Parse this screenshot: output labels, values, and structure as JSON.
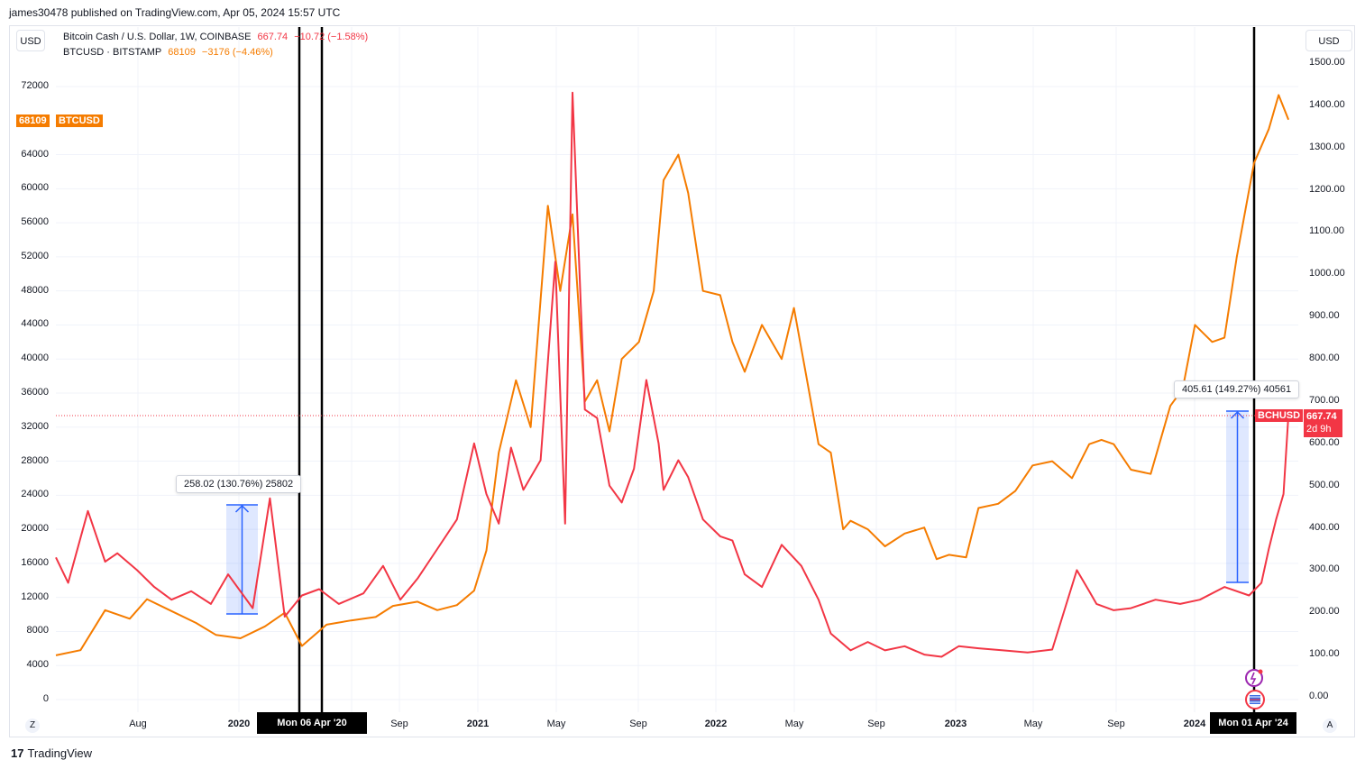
{
  "header": {
    "published": "james30478 published on TradingView.com, Apr 05, 2024 15:57 UTC"
  },
  "currency_left": "USD",
  "currency_right": "USD",
  "legend": {
    "bch": {
      "name": "Bitcoin Cash / U.S. Dollar, 1W, COINBASE",
      "price": "667.74",
      "change": "−10.72 (−1.58%)"
    },
    "btc": {
      "name": "BTCUSD · BITSTAMP",
      "price": "68109",
      "change": "−3176 (−4.46%)"
    }
  },
  "price_tags": {
    "btc_value": "68109",
    "btc_symbol": "BTCUSD",
    "bch_symbol": "BCHUSD",
    "bch_value": "667.74",
    "bch_countdown": "2d 9h"
  },
  "measurements": [
    {
      "text": "258.02 (130.76%) 25802"
    },
    {
      "text": "405.61 (149.27%) 40561"
    }
  ],
  "date_markers": [
    "Mon 06 Apr '20",
    "Mon 01 Apr '24"
  ],
  "colors": {
    "btc": "#f57c00",
    "bch": "#f23645",
    "measure": "#2962ff",
    "grid": "#f0f3fa"
  },
  "footer": {
    "brand": "TradingView",
    "corner_left": "Z",
    "corner_right": "A"
  },
  "chart_data": {
    "type": "line",
    "title": "",
    "x": [
      "Aug",
      "2020",
      "Sep",
      "2021",
      "May",
      "Sep",
      "2022",
      "May",
      "Sep",
      "2023",
      "May",
      "Sep",
      "2024"
    ],
    "x_tick_labels": [
      "Aug",
      "2020",
      "'20",
      "Sep",
      "2021",
      "May",
      "Sep",
      "2022",
      "May",
      "Sep",
      "2023",
      "May",
      "Sep",
      "2024"
    ],
    "y_left_ticks": [
      "0",
      "4000",
      "8000",
      "12000",
      "16000",
      "20000",
      "24000",
      "28000",
      "32000",
      "36000",
      "40000",
      "44000",
      "48000",
      "52000",
      "56000",
      "60000",
      "64000",
      "72000"
    ],
    "y_right_ticks": [
      "0.00",
      "100.00",
      "200.00",
      "300.00",
      "400.00",
      "500.00",
      "600.00",
      "700.00",
      "800.00",
      "900.00",
      "1000.00",
      "1100.00",
      "1200.00",
      "1300.00",
      "1400.00",
      "1500.00"
    ],
    "ylim_left": [
      0,
      72000
    ],
    "ylim_right": [
      0,
      1450
    ],
    "series": [
      {
        "name": "BTCUSD · BITSTAMP",
        "axis": "left",
        "x": [
          2019.25,
          2019.35,
          2019.45,
          2019.55,
          2019.62,
          2019.72,
          2019.82,
          2019.9,
          2020.0,
          2020.1,
          2020.18,
          2020.25,
          2020.35,
          2020.45,
          2020.55,
          2020.62,
          2020.72,
          2020.8,
          2020.88,
          2020.95,
          2021.0,
          2021.05,
          2021.12,
          2021.18,
          2021.25,
          2021.3,
          2021.35,
          2021.4,
          2021.45,
          2021.5,
          2021.55,
          2021.62,
          2021.68,
          2021.72,
          2021.78,
          2021.82,
          2021.88,
          2021.95,
          2022.0,
          2022.05,
          2022.12,
          2022.2,
          2022.25,
          2022.3,
          2022.35,
          2022.4,
          2022.45,
          2022.48,
          2022.55,
          2022.62,
          2022.7,
          2022.78,
          2022.83,
          2022.88,
          2022.95,
          2023.0,
          2023.08,
          2023.15,
          2023.22,
          2023.3,
          2023.38,
          2023.45,
          2023.5,
          2023.55,
          2023.62,
          2023.7,
          2023.78,
          2023.83,
          2023.88,
          2023.95,
          2024.0,
          2024.05,
          2024.12,
          2024.18,
          2024.22,
          2024.26
        ],
        "y": [
          5200,
          5800,
          10500,
          9500,
          11800,
          10400,
          9000,
          7600,
          7200,
          8600,
          10200,
          6300,
          8800,
          9300,
          9700,
          11000,
          11500,
          10500,
          11100,
          12800,
          17500,
          29000,
          37500,
          32000,
          58000,
          48000,
          57000,
          35000,
          37500,
          31500,
          40000,
          42000,
          48000,
          61000,
          64000,
          59500,
          48000,
          47500,
          42000,
          38500,
          44000,
          40000,
          46000,
          38000,
          30000,
          29000,
          20000,
          21000,
          20000,
          18000,
          19500,
          20200,
          16500,
          17000,
          16700,
          22500,
          23000,
          24500,
          27500,
          28000,
          26000,
          30000,
          30500,
          30000,
          27000,
          26500,
          34500,
          36500,
          44000,
          42000,
          42500,
          52000,
          63000,
          67000,
          71000,
          68109
        ]
      },
      {
        "name": "Bitcoin Cash / U.S. Dollar, 1W, COINBASE",
        "axis": "right",
        "x": [
          2019.25,
          2019.3,
          2019.38,
          2019.45,
          2019.5,
          2019.58,
          2019.65,
          2019.72,
          2019.8,
          2019.88,
          2019.95,
          2020.05,
          2020.12,
          2020.18,
          2020.25,
          2020.32,
          2020.4,
          2020.5,
          2020.58,
          2020.65,
          2020.72,
          2020.8,
          2020.88,
          2020.95,
          2021.0,
          2021.05,
          2021.1,
          2021.15,
          2021.22,
          2021.28,
          2021.32,
          2021.35,
          2021.4,
          2021.45,
          2021.5,
          2021.55,
          2021.6,
          2021.65,
          2021.7,
          2021.72,
          2021.78,
          2021.82,
          2021.88,
          2021.95,
          2022.0,
          2022.05,
          2022.12,
          2022.2,
          2022.28,
          2022.35,
          2022.4,
          2022.48,
          2022.55,
          2022.62,
          2022.7,
          2022.78,
          2022.85,
          2022.92,
          2023.0,
          2023.1,
          2023.2,
          2023.3,
          2023.4,
          2023.45,
          2023.48,
          2023.55,
          2023.62,
          2023.72,
          2023.82,
          2023.9,
          2024.0,
          2024.1,
          2024.15,
          2024.18,
          2024.21,
          2024.24,
          2024.26
        ],
        "y": [
          330,
          270,
          440,
          320,
          340,
          300,
          260,
          230,
          250,
          220,
          290,
          210,
          470,
          190,
          240,
          255,
          220,
          245,
          310,
          230,
          280,
          350,
          420,
          600,
          480,
          410,
          590,
          490,
          560,
          1030,
          410,
          1430,
          680,
          660,
          500,
          460,
          540,
          750,
          600,
          490,
          560,
          520,
          420,
          380,
          370,
          290,
          260,
          360,
          310,
          230,
          150,
          110,
          130,
          110,
          120,
          100,
          95,
          120,
          115,
          110,
          105,
          112,
          300,
          250,
          220,
          205,
          210,
          230,
          220,
          230,
          260,
          240,
          270,
          350,
          420,
          480,
          667.74
        ]
      }
    ]
  }
}
